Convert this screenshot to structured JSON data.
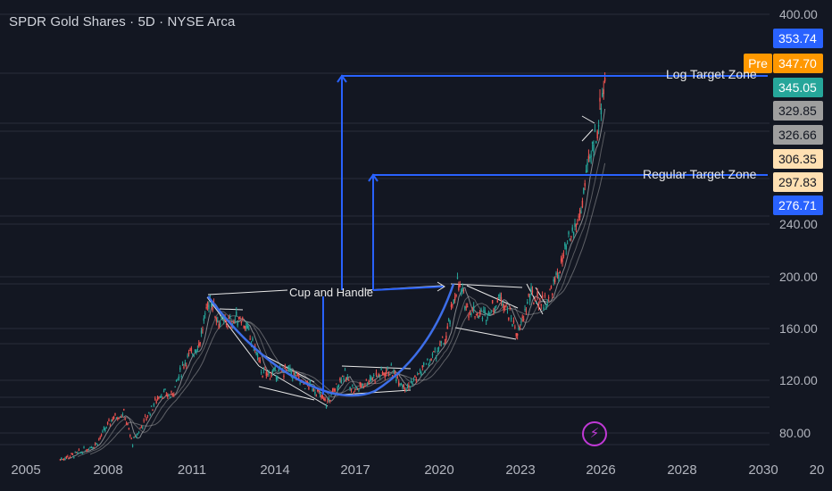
{
  "header": {
    "title": "SPDR Gold Shares · 5D · NYSE Arca"
  },
  "chart_data": {
    "type": "candlestick",
    "y_ticks": [
      "400.00",
      "240.00",
      "200.00",
      "160.00",
      "120.00",
      "80.00"
    ],
    "x_ticks": [
      "2005",
      "2008",
      "2011",
      "2014",
      "2017",
      "2020",
      "2023",
      "2026",
      "2028",
      "2030",
      "20"
    ],
    "price_tags": [
      {
        "label": "353.74",
        "bg": "#2962ff",
        "fg": "#ffffff"
      },
      {
        "label": "347.70",
        "bg": "#ff9800",
        "fg": "#ffffff"
      },
      {
        "label": "345.05",
        "bg": "#26a69a",
        "fg": "#ffffff"
      },
      {
        "label": "329.85",
        "bg": "#9e9e9e",
        "fg": "#131722"
      },
      {
        "label": "326.66",
        "bg": "#9e9e9e",
        "fg": "#131722"
      },
      {
        "label": "306.35",
        "bg": "#ffe0b2",
        "fg": "#131722"
      },
      {
        "label": "297.83",
        "bg": "#ffe0b2",
        "fg": "#131722"
      },
      {
        "label": "276.71",
        "bg": "#2962ff",
        "fg": "#ffffff"
      }
    ],
    "pre_label": "Pre",
    "annotations": {
      "cup_and_handle": "Cup and Handle",
      "log_target": "Log Target  Zone",
      "regular_target": "Regular Target  Zone"
    },
    "price_path": [
      [
        2006.3,
        60
      ],
      [
        2007.0,
        65
      ],
      [
        2007.6,
        72
      ],
      [
        2008.2,
        92
      ],
      [
        2008.6,
        95
      ],
      [
        2008.9,
        72
      ],
      [
        2009.3,
        88
      ],
      [
        2009.9,
        110
      ],
      [
        2010.3,
        108
      ],
      [
        2010.8,
        135
      ],
      [
        2011.3,
        148
      ],
      [
        2011.7,
        185
      ],
      [
        2012.0,
        165
      ],
      [
        2012.5,
        165
      ],
      [
        2012.8,
        170
      ],
      [
        2013.3,
        145
      ],
      [
        2013.6,
        125
      ],
      [
        2014.0,
        125
      ],
      [
        2014.5,
        128
      ],
      [
        2015.0,
        118
      ],
      [
        2015.4,
        115
      ],
      [
        2015.9,
        102
      ],
      [
        2016.5,
        125
      ],
      [
        2016.9,
        112
      ],
      [
        2017.5,
        122
      ],
      [
        2018.2,
        128
      ],
      [
        2018.8,
        114
      ],
      [
        2019.5,
        132
      ],
      [
        2020.2,
        152
      ],
      [
        2020.6,
        195
      ],
      [
        2021.0,
        175
      ],
      [
        2021.6,
        170
      ],
      [
        2022.2,
        185
      ],
      [
        2022.8,
        155
      ],
      [
        2023.2,
        185
      ],
      [
        2023.8,
        180
      ],
      [
        2024.2,
        200
      ],
      [
        2024.6,
        225
      ],
      [
        2025.0,
        245
      ],
      [
        2025.3,
        280
      ],
      [
        2025.5,
        300
      ],
      [
        2025.7,
        320
      ],
      [
        2025.85,
        345
      ],
      [
        2025.95,
        352
      ]
    ],
    "colors": {
      "up": "#26a69a",
      "down": "#ef5350",
      "annotation": "#2962ff",
      "cup": "#3d6ee8"
    }
  },
  "badge": {
    "icon": "lightning-icon"
  }
}
